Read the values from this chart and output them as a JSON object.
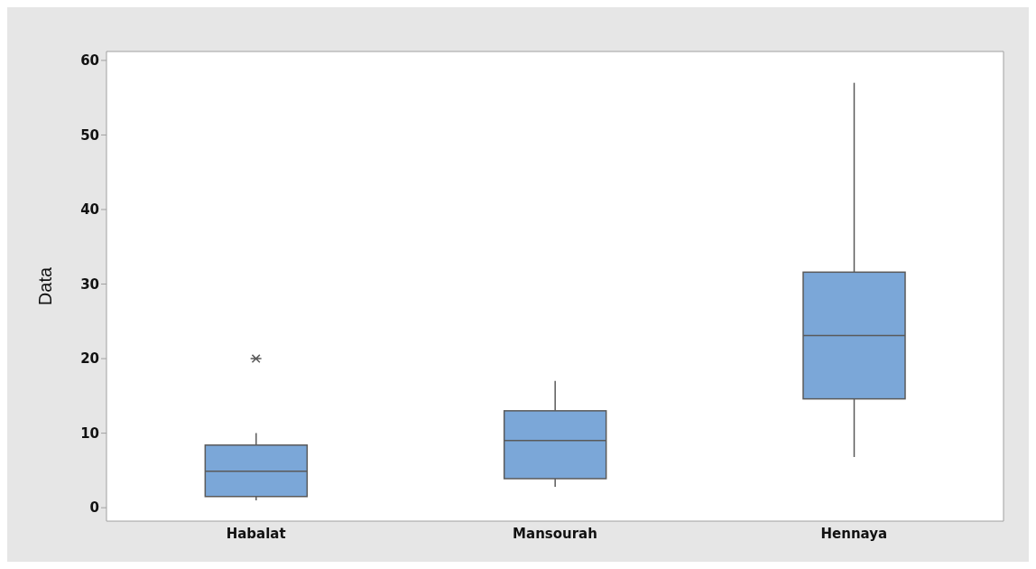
{
  "chart_data": {
    "type": "box",
    "ylabel": "Data",
    "categories": [
      "Habalat",
      "Mansourah",
      "Hennaya"
    ],
    "color": "#7ba7d8",
    "boxes": [
      {
        "low": 1,
        "q1": 1.5,
        "median": 4.9,
        "q3": 8.4,
        "high": 10,
        "outliers": [
          20
        ]
      },
      {
        "low": 2.8,
        "q1": 3.9,
        "median": 9,
        "q3": 13,
        "high": 17
      },
      {
        "low": 6.8,
        "q1": 14.6,
        "median": 23.1,
        "q3": 31.6,
        "high": 57
      }
    ],
    "ylim": [
      -1.8,
      61.2
    ],
    "yticks": [
      0,
      10,
      20,
      30,
      40,
      50,
      60
    ]
  }
}
